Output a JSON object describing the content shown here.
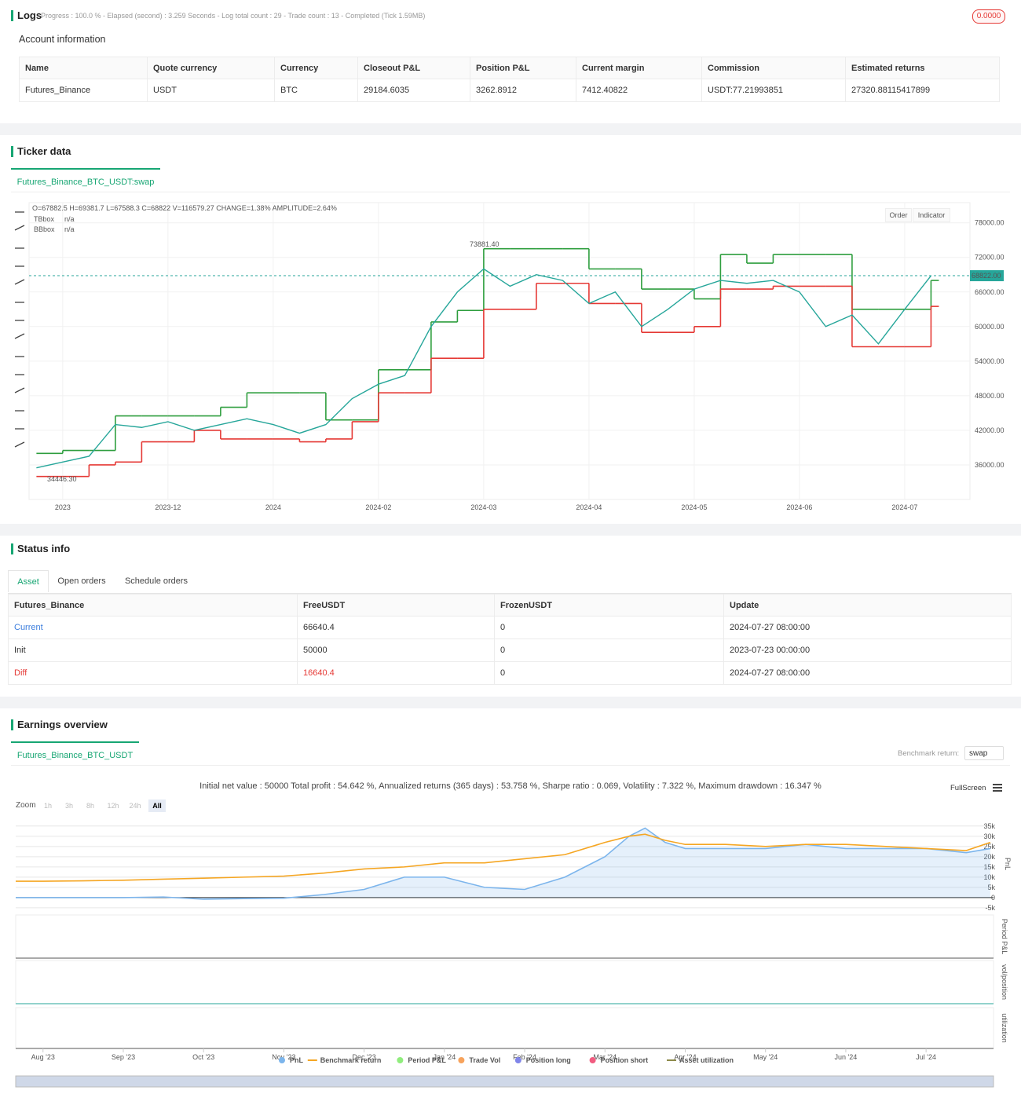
{
  "logs": {
    "title": "Logs",
    "progress": "Progress : 100.0 % - Elapsed (second) : 3.259 Seconds - Log total count : 29 - Trade count : 13 - Completed (Tick 1.59MB)",
    "badge": "0.0000"
  },
  "account": {
    "title": "Account information",
    "headers": [
      "Name",
      "Quote currency",
      "Currency",
      "Closeout P&L",
      "Position P&L",
      "Current margin",
      "Commission",
      "Estimated returns"
    ],
    "rows": [
      [
        "Futures_Binance",
        "USDT",
        "BTC",
        "29184.6035",
        "3262.8912",
        "7412.40822",
        "USDT:77.21993851",
        "27320.88115417899"
      ]
    ]
  },
  "ticker": {
    "title": "Ticker data",
    "tab": "Futures_Binance_BTC_USDT:swap",
    "buttons": [
      "Order",
      "Indicator"
    ]
  },
  "status": {
    "title": "Status info",
    "tabs": [
      "Asset",
      "Open orders",
      "Schedule orders"
    ],
    "headers": [
      "Futures_Binance",
      "FreeUSDT",
      "FrozenUSDT",
      "Update"
    ],
    "rows": [
      [
        "Current",
        "66640.4",
        "0",
        "2024-07-27 08:00:00"
      ],
      [
        "Init",
        "50000",
        "0",
        "2023-07-23 00:00:00"
      ],
      [
        "Diff",
        "16640.4",
        "0",
        "2024-07-27 08:00:00"
      ]
    ]
  },
  "earnings": {
    "title": "Earnings overview",
    "tab": "Futures_Binance_BTC_USDT",
    "benchmark_label": "Benchmark return:",
    "benchmark_value": "swap",
    "fullscreen": "FullScreen",
    "zoom_label": "Zoom",
    "zoom": [
      "1h",
      "3h",
      "8h",
      "12h",
      "24h",
      "All"
    ]
  },
  "chart_data": [
    {
      "type": "line",
      "ohlc": "O=67882.5 H=69381.7 L=67588.3 C=68822 V=116579.27 CHANGE=1.38% AMPLITUDE=2.64%",
      "high_label": "73881.40",
      "low_label": "34446.30",
      "last_price": {
        "value": 68822,
        "label": "68822.00"
      },
      "x": [
        -0.25,
        0,
        0.25,
        0.5,
        0.75,
        1,
        1.25,
        1.5,
        1.75,
        2,
        2.25,
        2.5,
        2.75,
        3,
        3.25,
        3.5,
        3.75,
        4,
        4.25,
        4.5,
        4.75,
        5,
        5.25,
        5.5,
        5.75,
        6,
        6.25,
        6.5,
        6.75,
        7,
        7.25,
        7.5,
        7.75,
        8,
        8.25
      ],
      "values": [
        35500,
        36500,
        37500,
        43000,
        42500,
        43500,
        42000,
        43000,
        44000,
        43000,
        41500,
        43000,
        47500,
        50000,
        51500,
        60000,
        66000,
        70000,
        67000,
        69000,
        68000,
        64000,
        66000,
        60000,
        63000,
        66500,
        68000,
        67500,
        68000,
        66000,
        60000,
        62000,
        57000,
        63000,
        68822
      ],
      "color": "#26a69a",
      "series": [
        {
          "name": "TBbox",
          "status": "n/a",
          "color": "#2e9e3e",
          "values": [
            38000,
            38500,
            38500,
            44500,
            44500,
            44500,
            44500,
            46000,
            48500,
            48500,
            48500,
            43800,
            43800,
            52500,
            52500,
            60800,
            62800,
            73500,
            73500,
            73500,
            73500,
            70000,
            70000,
            66500,
            66500,
            64800,
            72500,
            71000,
            72500,
            72500,
            72500,
            63000,
            63000,
            63000,
            68000
          ]
        },
        {
          "name": "BBbox",
          "status": "n/a",
          "color": "#e53935",
          "values": [
            34000,
            34000,
            36000,
            36500,
            40000,
            40000,
            42000,
            40500,
            40500,
            40500,
            40000,
            40500,
            43500,
            48500,
            48500,
            54500,
            54500,
            63000,
            63000,
            67500,
            67500,
            64000,
            64000,
            59000,
            59000,
            60000,
            66500,
            66500,
            67000,
            67000,
            67000,
            56500,
            56500,
            56500,
            63500
          ]
        }
      ],
      "xlim": [
        -0.32,
        8.62
      ],
      "xticks": [
        {
          "value": 0,
          "label": "2023"
        },
        {
          "value": 1,
          "label": "2023-12"
        },
        {
          "value": 2,
          "label": "2024"
        },
        {
          "value": 3,
          "label": "2024-02"
        },
        {
          "value": 4,
          "label": "2024-03"
        },
        {
          "value": 5,
          "label": "2024-04"
        },
        {
          "value": 6,
          "label": "2024-05"
        },
        {
          "value": 7,
          "label": "2024-06"
        },
        {
          "value": 8,
          "label": "2024-07"
        }
      ],
      "ylim": [
        30000,
        81500
      ],
      "yticks": [
        {
          "value": 36000,
          "label": "36000.00"
        },
        {
          "value": 42000,
          "label": "42000.00"
        },
        {
          "value": 48000,
          "label": "48000.00"
        },
        {
          "value": 54000,
          "label": "54000.00"
        },
        {
          "value": 60000,
          "label": "60000.00"
        },
        {
          "value": 66000,
          "label": "66000.00"
        },
        {
          "value": 72000,
          "label": "72000.00"
        },
        {
          "value": 78000,
          "label": "78000.00"
        }
      ],
      "grid": true
    },
    {
      "type": "line",
      "title": "Initial net value : 50000 Total profit : 54.642 %, Annualized returns (365 days) : 53.758 %, Sharpe ratio : 0.069, Volatility : 7.322 %, Maximum drawdown : 16.347 %",
      "y_label": "PnL",
      "subplot_labels": [
        "Period P&L",
        "vol/position",
        "utilization"
      ],
      "x": [
        -0.34,
        0,
        0.5,
        1,
        1.5,
        2,
        2.5,
        3,
        3.5,
        4,
        4.5,
        5,
        5.5,
        6,
        6.5,
        7,
        7.3,
        7.5,
        7.75,
        8,
        8.5,
        9,
        9.5,
        10,
        10.5,
        11,
        11.5,
        11.8
      ],
      "series": [
        {
          "name": "PnL",
          "color": "#7cb5ec",
          "values": [
            0,
            0,
            0,
            0,
            300,
            -800,
            -500,
            -300,
            1500,
            4000,
            10000,
            10000,
            5000,
            4000,
            10000,
            20000,
            30000,
            34000,
            27000,
            24000,
            24000,
            24000,
            26000,
            24000,
            24000,
            24000,
            22000,
            24000
          ]
        },
        {
          "name": "Benchmark return",
          "color": "#f5a623",
          "values": [
            8000,
            8000,
            8200,
            8500,
            9000,
            9500,
            10000,
            10500,
            12000,
            14000,
            15000,
            17000,
            17000,
            19000,
            21000,
            27000,
            30000,
            31000,
            28000,
            26000,
            26000,
            25000,
            26000,
            26000,
            25000,
            24000,
            23000,
            27000
          ]
        }
      ],
      "extra_legend": [
        {
          "name": "Period P&L",
          "color": "#90ed7d"
        },
        {
          "name": "Trade Vol",
          "color": "#f7a35c"
        },
        {
          "name": "Position long",
          "color": "#8085e9"
        },
        {
          "name": "Position short",
          "color": "#f15c80"
        },
        {
          "name": "Asset utilization",
          "color": "#8d8a4a"
        }
      ],
      "xlim": [
        -0.34,
        11.84
      ],
      "xticks": [
        {
          "value": 0,
          "label": "Aug '23"
        },
        {
          "value": 1,
          "label": "Sep '23"
        },
        {
          "value": 2,
          "label": "Oct '23"
        },
        {
          "value": 3,
          "label": "Nov '23"
        },
        {
          "value": 4,
          "label": "Dec '23"
        },
        {
          "value": 5,
          "label": "Jan '24"
        },
        {
          "value": 6,
          "label": "Feb '24"
        },
        {
          "value": 7,
          "label": "Mar '24"
        },
        {
          "value": 8,
          "label": "Apr '24"
        },
        {
          "value": 9,
          "label": "May '24"
        },
        {
          "value": 10,
          "label": "Jun '24"
        },
        {
          "value": 11,
          "label": "Jul '24"
        }
      ],
      "ylim": [
        -5800,
        38000
      ],
      "yticks": [
        {
          "value": -5000,
          "label": "-5k"
        },
        0,
        {
          "value": 5000,
          "label": "5k"
        },
        {
          "value": 10000,
          "label": "10k"
        },
        {
          "value": 15000,
          "label": "15k"
        },
        {
          "value": 20000,
          "label": "20k"
        },
        {
          "value": 25000,
          "label": "25k"
        },
        {
          "value": 30000,
          "label": "30k"
        },
        {
          "value": 35000,
          "label": "35k"
        }
      ],
      "grid": true
    }
  ]
}
